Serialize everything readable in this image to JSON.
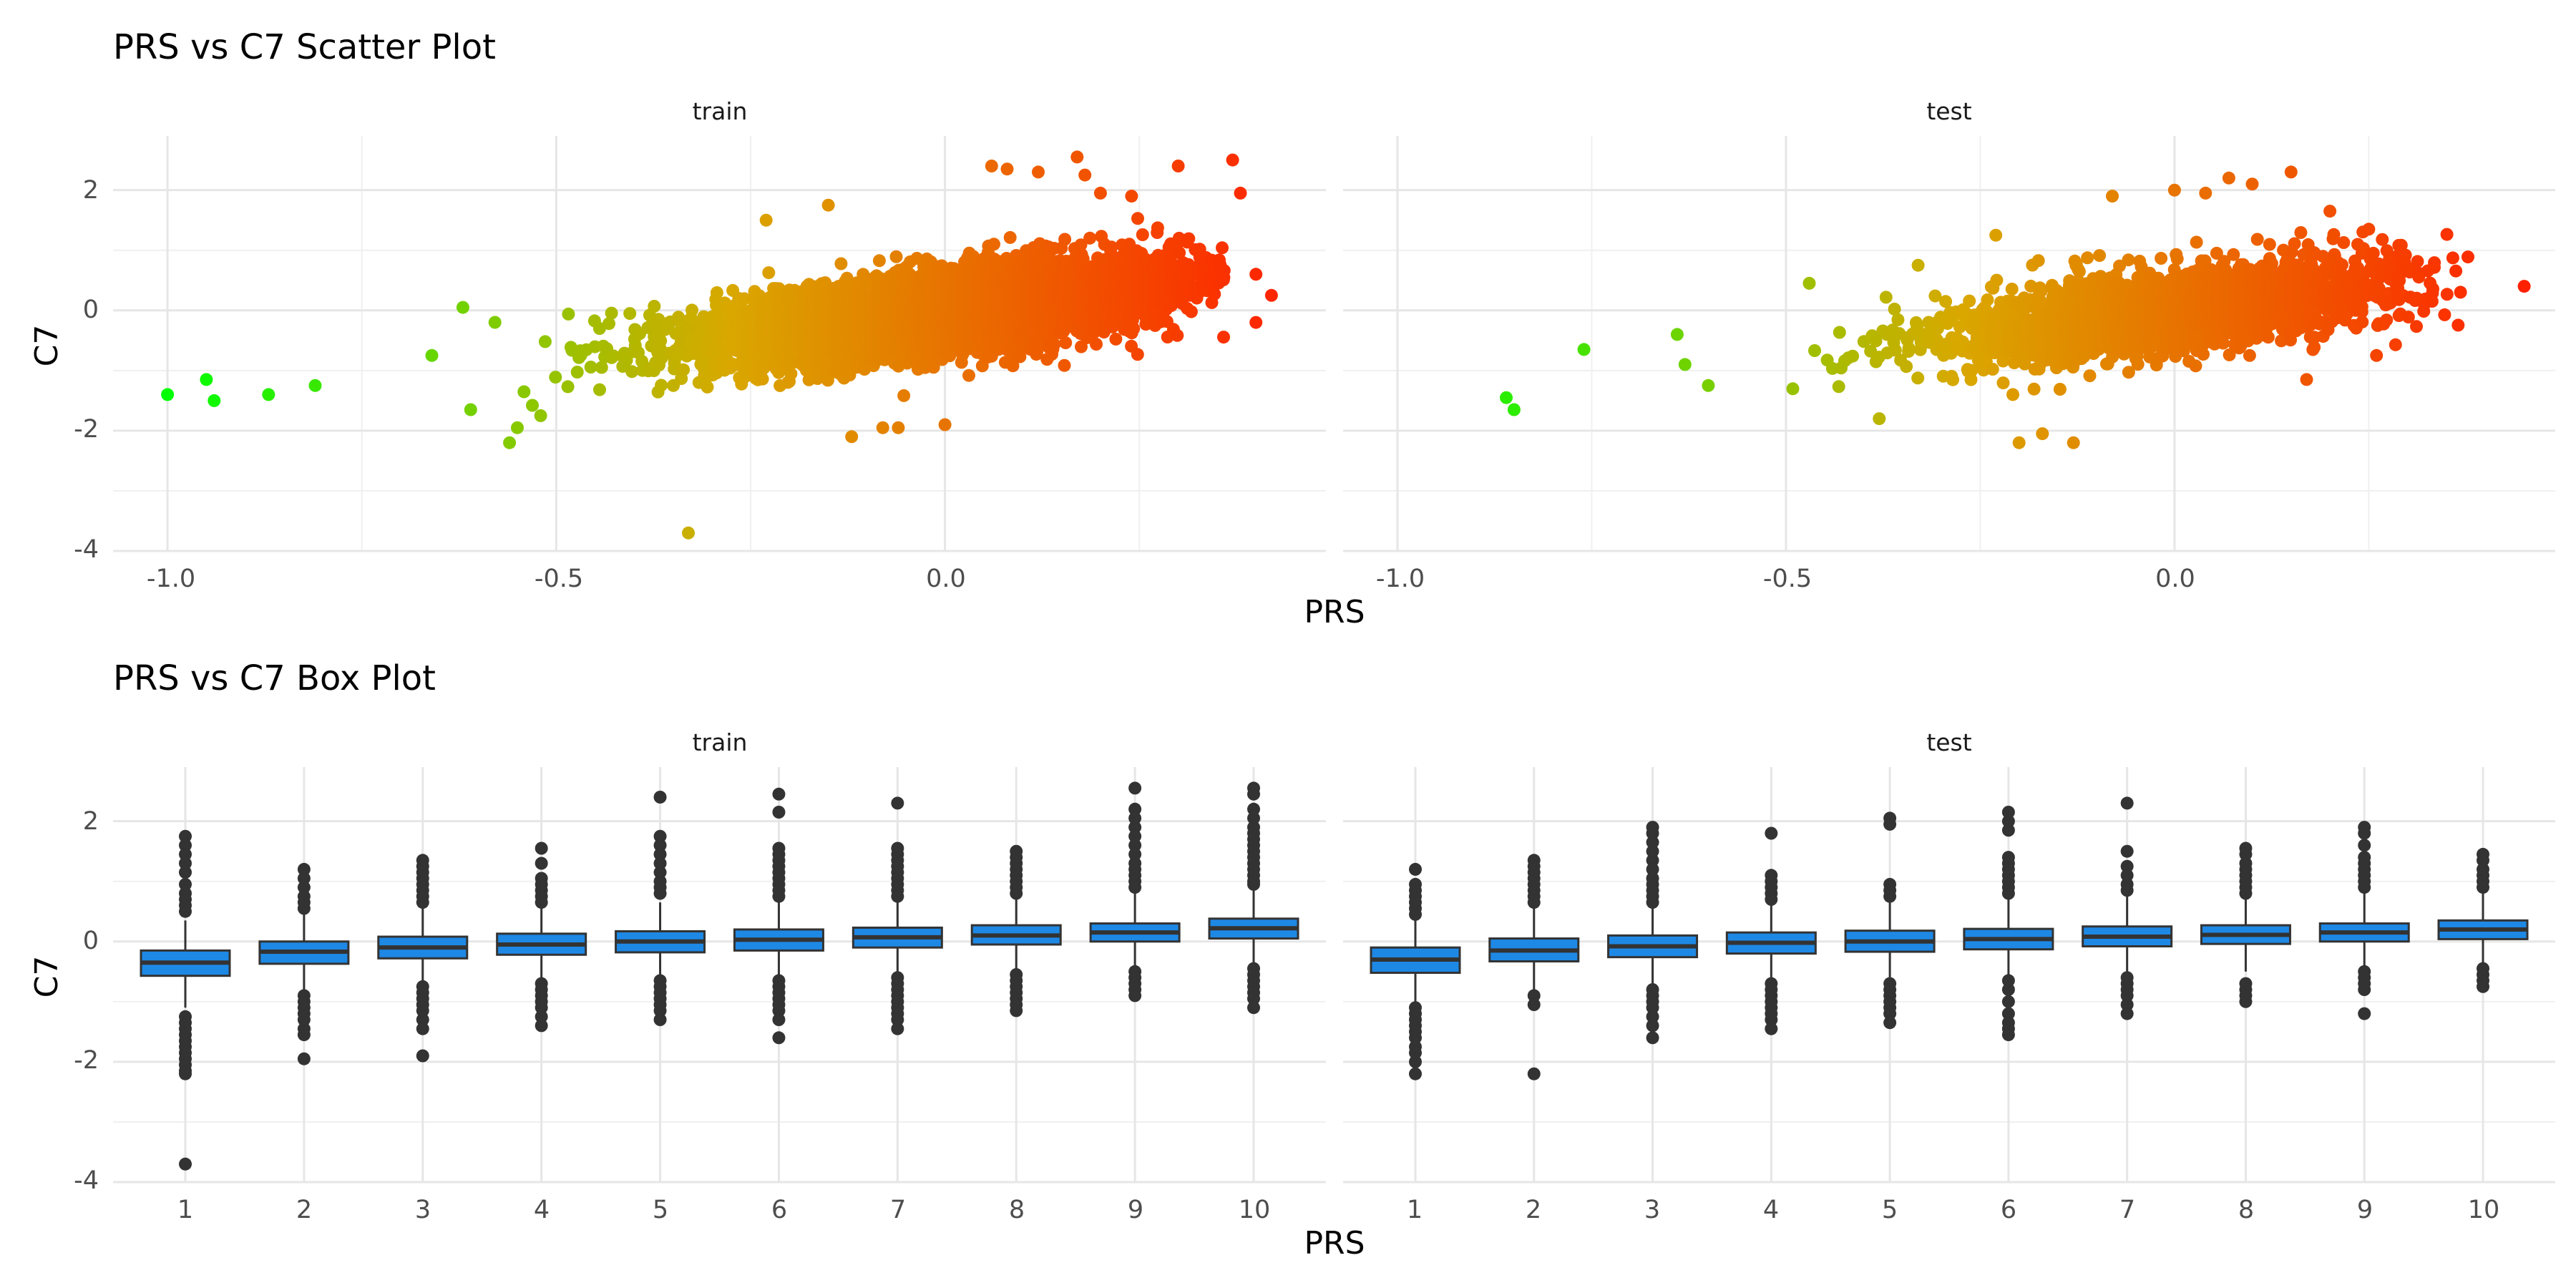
{
  "chart_data": [
    {
      "type": "scatter",
      "title": "PRS vs C7 Scatter Plot",
      "xlabel": "PRS",
      "ylabel": "C7",
      "xlim": [
        -1.07,
        0.49
      ],
      "ylim": [
        -4.0,
        2.9
      ],
      "x_ticks": [
        -1.0,
        -0.5,
        0.0
      ],
      "x_tick_labels": [
        "-1.0",
        "-0.5",
        "0.0"
      ],
      "y_ticks": [
        2,
        0,
        -2,
        -4
      ],
      "y_tick_labels": [
        "2",
        "0",
        "-2",
        "-4"
      ],
      "color_scale": {
        "low": "#00ff00",
        "mid": "#d9a800",
        "high": "#ff2000"
      },
      "grid": true,
      "panels": [
        {
          "name": "train",
          "cloud": {
            "n": 5500,
            "x_center": 0.0,
            "x_sd": 0.15,
            "slope": 1.6,
            "y_noise_sd": 0.33,
            "x_min": -0.58,
            "x_max": 0.36
          },
          "points": [
            [
              -1.0,
              -1.4
            ],
            [
              -0.95,
              -1.15
            ],
            [
              -0.94,
              -1.5
            ],
            [
              -0.87,
              -1.4
            ],
            [
              -0.81,
              -1.25
            ],
            [
              -0.62,
              0.05
            ],
            [
              -0.61,
              -1.65
            ],
            [
              -0.66,
              -0.75
            ],
            [
              -0.56,
              -2.2
            ],
            [
              -0.55,
              -1.95
            ],
            [
              -0.52,
              -1.75
            ],
            [
              -0.33,
              -3.7
            ],
            [
              -0.23,
              1.5
            ],
            [
              -0.15,
              1.75
            ],
            [
              -0.12,
              -2.1
            ],
            [
              -0.08,
              -1.95
            ],
            [
              -0.06,
              -1.95
            ],
            [
              -0.0,
              -1.9
            ],
            [
              0.06,
              2.4
            ],
            [
              0.08,
              2.35
            ],
            [
              0.12,
              2.3
            ],
            [
              0.17,
              2.55
            ],
            [
              0.18,
              2.25
            ],
            [
              0.2,
              1.95
            ],
            [
              0.24,
              1.9
            ],
            [
              0.3,
              2.4
            ],
            [
              0.37,
              2.5
            ],
            [
              0.38,
              1.95
            ],
            [
              0.4,
              0.6
            ],
            [
              0.42,
              0.25
            ],
            [
              0.4,
              -0.2
            ]
          ]
        },
        {
          "name": "test",
          "cloud": {
            "n": 2400,
            "x_center": 0.0,
            "x_sd": 0.15,
            "slope": 1.6,
            "y_noise_sd": 0.33,
            "x_min": -0.56,
            "x_max": 0.38
          },
          "points": [
            [
              -0.86,
              -1.45
            ],
            [
              -0.85,
              -1.65
            ],
            [
              -0.76,
              -0.65
            ],
            [
              -0.64,
              -0.4
            ],
            [
              -0.63,
              -0.9
            ],
            [
              -0.6,
              -1.25
            ],
            [
              -0.47,
              0.45
            ],
            [
              -0.38,
              -1.8
            ],
            [
              -0.33,
              0.75
            ],
            [
              -0.23,
              1.25
            ],
            [
              -0.2,
              -2.2
            ],
            [
              -0.17,
              -2.05
            ],
            [
              -0.13,
              -2.2
            ],
            [
              -0.08,
              1.9
            ],
            [
              0.0,
              2.0
            ],
            [
              0.04,
              1.95
            ],
            [
              0.07,
              2.2
            ],
            [
              0.1,
              2.1
            ],
            [
              0.15,
              2.3
            ],
            [
              0.2,
              1.65
            ],
            [
              0.25,
              1.35
            ],
            [
              0.17,
              -1.15
            ],
            [
              0.26,
              -0.75
            ],
            [
              0.45,
              0.4
            ]
          ]
        }
      ]
    },
    {
      "type": "box",
      "title": "PRS vs C7 Box Plot",
      "xlabel": "PRS",
      "ylabel": "C7",
      "categories": [
        "1",
        "2",
        "3",
        "4",
        "5",
        "6",
        "7",
        "8",
        "9",
        "10"
      ],
      "ylim": [
        -4.0,
        2.9
      ],
      "y_ticks": [
        2,
        0,
        -2,
        -4
      ],
      "y_tick_labels": [
        "2",
        "0",
        "-2",
        "-4"
      ],
      "box_color": "#1e88e5",
      "grid": true,
      "panels": [
        {
          "name": "train",
          "boxes": [
            {
              "q1": -0.57,
              "median": -0.35,
              "q3": -0.15,
              "lower": -1.1,
              "upper": 0.35,
              "outliers": [
                1.75,
                1.6,
                1.45,
                1.3,
                1.15,
                0.95,
                0.8,
                0.7,
                0.6,
                0.5,
                -1.25,
                -1.35,
                -1.45,
                -1.55,
                -1.65,
                -1.75,
                -1.85,
                -1.95,
                -2.05,
                -2.15,
                -2.2,
                -3.7
              ]
            },
            {
              "q1": -0.37,
              "median": -0.17,
              "q3": 0.0,
              "lower": -0.85,
              "upper": 0.5,
              "outliers": [
                1.2,
                1.05,
                0.9,
                0.75,
                0.65,
                0.55,
                -0.9,
                -1.0,
                -1.1,
                -1.2,
                -1.3,
                -1.45,
                -1.55,
                -1.95
              ]
            },
            {
              "q1": -0.28,
              "median": -0.1,
              "q3": 0.08,
              "lower": -0.7,
              "upper": 0.6,
              "outliers": [
                1.35,
                1.25,
                1.15,
                1.05,
                0.95,
                0.85,
                0.75,
                0.65,
                -0.75,
                -0.85,
                -0.95,
                -1.05,
                -1.15,
                -1.3,
                -1.45,
                -1.9
              ]
            },
            {
              "q1": -0.22,
              "median": -0.05,
              "q3": 0.13,
              "lower": -0.65,
              "upper": 0.6,
              "outliers": [
                1.55,
                1.3,
                1.05,
                0.95,
                0.85,
                0.75,
                0.65,
                -0.7,
                -0.8,
                -0.9,
                -1.0,
                -1.1,
                -1.25,
                -1.4
              ]
            },
            {
              "q1": -0.18,
              "median": 0.0,
              "q3": 0.17,
              "lower": -0.6,
              "upper": 0.65,
              "outliers": [
                2.4,
                1.75,
                1.6,
                1.45,
                1.3,
                1.15,
                1.0,
                0.9,
                0.8,
                -0.65,
                -0.75,
                -0.85,
                -0.95,
                -1.05,
                -1.15,
                -1.3
              ]
            },
            {
              "q1": -0.15,
              "median": 0.03,
              "q3": 0.2,
              "lower": -0.6,
              "upper": 0.7,
              "outliers": [
                2.45,
                2.15,
                1.55,
                1.45,
                1.35,
                1.25,
                1.15,
                1.05,
                0.95,
                0.85,
                0.75,
                -0.65,
                -0.75,
                -0.85,
                -0.95,
                -1.05,
                -1.15,
                -1.3,
                -1.6
              ]
            },
            {
              "q1": -0.1,
              "median": 0.07,
              "q3": 0.23,
              "lower": -0.55,
              "upper": 0.7,
              "outliers": [
                2.3,
                1.55,
                1.45,
                1.35,
                1.25,
                1.15,
                1.05,
                0.95,
                0.85,
                0.75,
                -0.6,
                -0.7,
                -0.8,
                -0.9,
                -1.0,
                -1.1,
                -1.2,
                -1.3,
                -1.45
              ]
            },
            {
              "q1": -0.05,
              "median": 0.1,
              "q3": 0.27,
              "lower": -0.5,
              "upper": 0.75,
              "outliers": [
                1.5,
                1.4,
                1.3,
                1.2,
                1.1,
                1.0,
                0.9,
                0.8,
                -0.55,
                -0.65,
                -0.75,
                -0.85,
                -0.95,
                -1.05,
                -1.15
              ]
            },
            {
              "q1": 0.0,
              "median": 0.15,
              "q3": 0.3,
              "lower": -0.45,
              "upper": 0.8,
              "outliers": [
                2.55,
                2.2,
                2.05,
                1.9,
                1.75,
                1.6,
                1.45,
                1.3,
                1.2,
                1.1,
                1.0,
                0.9,
                -0.5,
                -0.6,
                -0.7,
                -0.8,
                -0.9
              ]
            },
            {
              "q1": 0.05,
              "median": 0.22,
              "q3": 0.38,
              "lower": -0.4,
              "upper": 0.9,
              "outliers": [
                2.55,
                2.45,
                2.2,
                2.05,
                1.9,
                1.8,
                1.7,
                1.6,
                1.5,
                1.4,
                1.3,
                1.2,
                1.1,
                1.0,
                0.95,
                -0.45,
                -0.55,
                -0.65,
                -0.75,
                -0.85,
                -0.95,
                -1.1
              ]
            }
          ]
        },
        {
          "name": "test",
          "boxes": [
            {
              "q1": -0.52,
              "median": -0.3,
              "q3": -0.1,
              "lower": -1.05,
              "upper": 0.4,
              "outliers": [
                1.2,
                0.95,
                0.85,
                0.75,
                0.65,
                0.55,
                0.45,
                -1.1,
                -1.2,
                -1.3,
                -1.4,
                -1.5,
                -1.6,
                -1.75,
                -1.85,
                -2.0,
                -2.2
              ]
            },
            {
              "q1": -0.33,
              "median": -0.15,
              "q3": 0.05,
              "lower": -0.85,
              "upper": 0.55,
              "outliers": [
                1.35,
                1.25,
                1.15,
                1.05,
                0.95,
                0.85,
                0.75,
                0.65,
                -0.9,
                -1.05,
                -2.2
              ]
            },
            {
              "q1": -0.26,
              "median": -0.08,
              "q3": 0.1,
              "lower": -0.75,
              "upper": 0.6,
              "outliers": [
                1.9,
                1.8,
                1.65,
                1.5,
                1.35,
                1.2,
                1.05,
                0.95,
                0.85,
                0.75,
                0.65,
                -0.8,
                -0.9,
                -1.0,
                -1.1,
                -1.25,
                -1.4,
                -1.6
              ]
            },
            {
              "q1": -0.2,
              "median": -0.02,
              "q3": 0.15,
              "lower": -0.65,
              "upper": 0.65,
              "outliers": [
                1.8,
                1.1,
                1.0,
                0.9,
                0.8,
                0.7,
                -0.7,
                -0.8,
                -0.9,
                -1.0,
                -1.1,
                -1.2,
                -1.3,
                -1.45
              ]
            },
            {
              "q1": -0.17,
              "median": 0.0,
              "q3": 0.18,
              "lower": -0.65,
              "upper": 0.65,
              "outliers": [
                2.05,
                1.95,
                0.95,
                0.85,
                0.75,
                -0.7,
                -0.8,
                -0.9,
                -1.0,
                -1.1,
                -1.2,
                -1.35
              ]
            },
            {
              "q1": -0.13,
              "median": 0.04,
              "q3": 0.21,
              "lower": -0.6,
              "upper": 0.7,
              "outliers": [
                2.15,
                2.0,
                1.85,
                1.4,
                1.3,
                1.2,
                1.1,
                1.0,
                0.9,
                0.8,
                -0.65,
                -0.8,
                -1.0,
                -1.2,
                -1.35,
                -1.45,
                -1.55
              ]
            },
            {
              "q1": -0.08,
              "median": 0.08,
              "q3": 0.25,
              "lower": -0.55,
              "upper": 0.75,
              "outliers": [
                2.3,
                1.5,
                1.25,
                1.1,
                0.95,
                0.85,
                -0.6,
                -0.7,
                -0.8,
                -0.9,
                -1.05,
                -1.2
              ]
            },
            {
              "q1": -0.04,
              "median": 0.11,
              "q3": 0.27,
              "lower": -0.5,
              "upper": 0.75,
              "outliers": [
                1.55,
                1.45,
                1.3,
                1.2,
                1.1,
                1.0,
                0.9,
                0.8,
                -0.7,
                -0.8,
                -0.9,
                -1.0
              ]
            },
            {
              "q1": 0.0,
              "median": 0.15,
              "q3": 0.3,
              "lower": -0.45,
              "upper": 0.8,
              "outliers": [
                1.9,
                1.8,
                1.6,
                1.4,
                1.3,
                1.2,
                1.1,
                1.0,
                0.9,
                -0.5,
                -0.6,
                -0.7,
                -0.8,
                -1.2
              ]
            },
            {
              "q1": 0.04,
              "median": 0.2,
              "q3": 0.35,
              "lower": -0.4,
              "upper": 0.85,
              "outliers": [
                1.45,
                1.35,
                1.2,
                1.1,
                1.0,
                0.9,
                -0.45,
                -0.55,
                -0.65,
                -0.75
              ]
            }
          ]
        }
      ]
    }
  ]
}
